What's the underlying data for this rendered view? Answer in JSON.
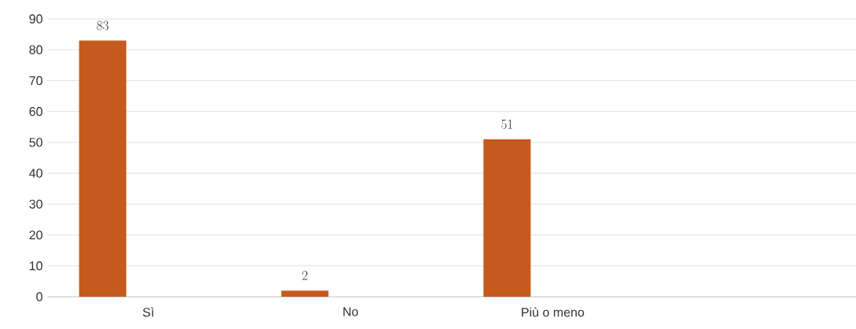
{
  "chart_data": {
    "type": "bar",
    "categories": [
      "Sì",
      "No",
      "Più o meno",
      null
    ],
    "values": [
      83,
      2,
      51,
      null
    ],
    "color": "#c55a1e",
    "ylim": [
      0,
      90
    ],
    "yticks": [
      0,
      10,
      20,
      30,
      40,
      50,
      60,
      70,
      80,
      90
    ],
    "grid": "y",
    "data_labels": true
  }
}
